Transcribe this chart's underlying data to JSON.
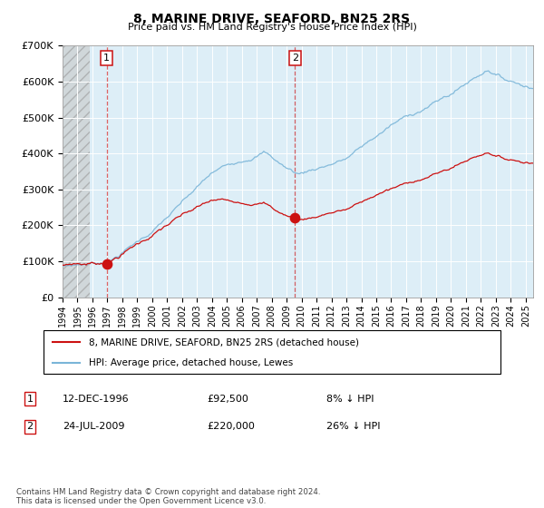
{
  "title": "8, MARINE DRIVE, SEAFORD, BN25 2RS",
  "subtitle": "Price paid vs. HM Land Registry's House Price Index (HPI)",
  "ylim": [
    0,
    700000
  ],
  "xlim_start": 1994.0,
  "xlim_end": 2025.5,
  "hatch_end_year": 1995.8,
  "sale1_year": 1996.95,
  "sale1_price": 92500,
  "sale2_year": 2009.56,
  "sale2_price": 220000,
  "hpi_color": "#7ab5d8",
  "price_color": "#cc1111",
  "background_plot": "#ddeef7",
  "legend_label1": "8, MARINE DRIVE, SEAFORD, BN25 2RS (detached house)",
  "legend_label2": "HPI: Average price, detached house, Lewes",
  "annotation1_date": "12-DEC-1996",
  "annotation1_price": "£92,500",
  "annotation1_hpi": "8% ↓ HPI",
  "annotation2_date": "24-JUL-2009",
  "annotation2_price": "£220,000",
  "annotation2_hpi": "26% ↓ HPI",
  "footer": "Contains HM Land Registry data © Crown copyright and database right 2024.\nThis data is licensed under the Open Government Licence v3.0."
}
